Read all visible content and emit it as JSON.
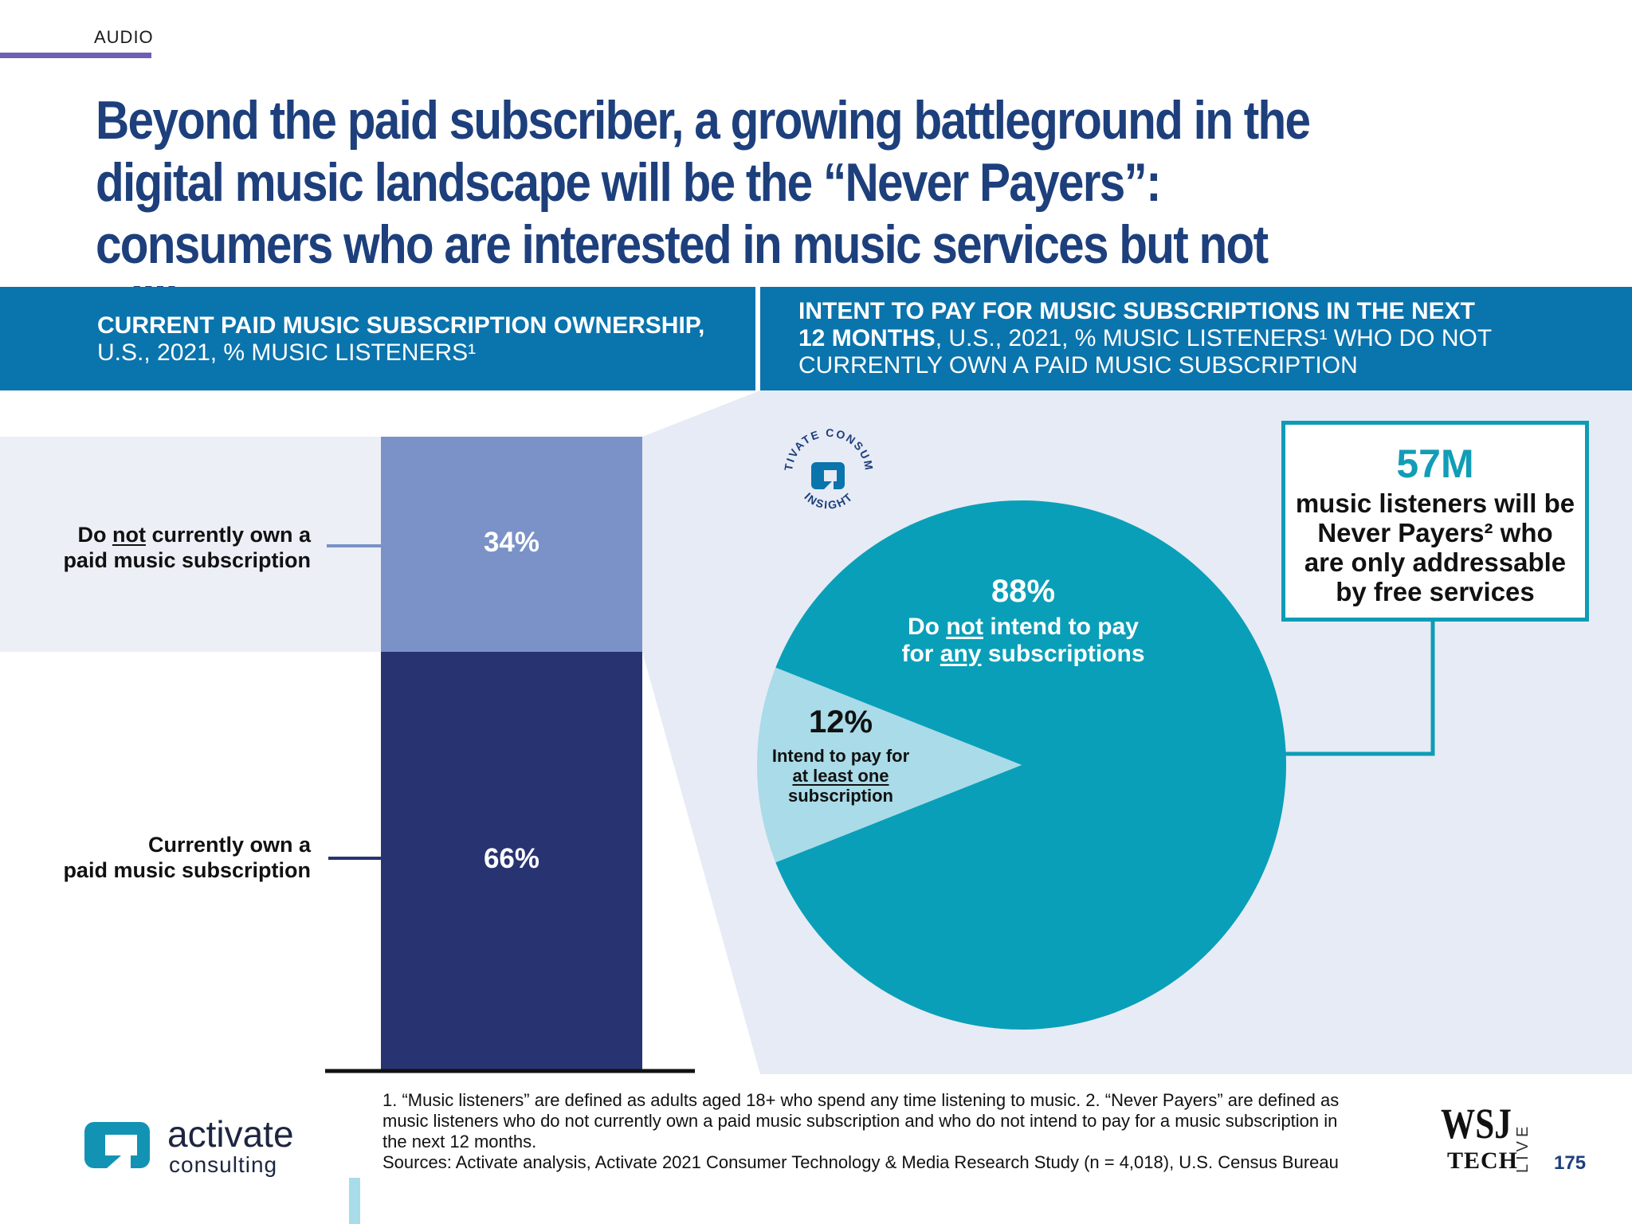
{
  "section": {
    "tag": "AUDIO"
  },
  "headline": "Beyond the paid subscriber, a growing battleground in the digital music landscape will be the “Never Payers”: consumers who are interested in music services but not willing to pay",
  "left_panel": {
    "title_bold": "CURRENT PAID MUSIC SUBSCRIPTION OWNERSHIP,",
    "title_rest": "U.S., 2021, % MUSIC LISTENERS¹"
  },
  "right_panel": {
    "title_line1": "INTENT TO PAY FOR MUSIC SUBSCRIPTIONS IN THE NEXT",
    "title_line2_bold": "12 MONTHS",
    "title_line2_rest": ", U.S., 2021, % MUSIC LISTENERS¹ WHO DO NOT",
    "title_line3": "CURRENTLY OWN A PAID MUSIC SUBSCRIPTION"
  },
  "badge": {
    "text_top": "ACTIVATE CONSUMER",
    "text_bottom": "INSIGHT"
  },
  "callout": {
    "number": "57M",
    "line1": "music listeners will be",
    "line2": "Never Payers² who",
    "line3": "are only addressable",
    "line4": "by free services"
  },
  "chart_data": [
    {
      "type": "bar",
      "stacked": true,
      "categories": [
        "Do not currently own a paid music subscription",
        "Currently own a paid music subscription"
      ],
      "values": [
        34,
        66
      ],
      "value_labels": [
        "34%",
        "66%"
      ],
      "label_parts": {
        "top_1a": "Do ",
        "top_1u": "not",
        "top_1b": " currently own a",
        "top_2": "paid music subscription",
        "bottom_1": "Currently own a",
        "bottom_2": "paid music subscription"
      },
      "colors": [
        "#7a92c7",
        "#283371"
      ]
    },
    {
      "type": "pie",
      "values": [
        88,
        12
      ],
      "value_labels": [
        "88%",
        "12%"
      ],
      "label_parts": {
        "big_1a": "Do ",
        "big_1u": "not",
        "big_1b": " intend to pay",
        "big_2a": "for ",
        "big_2u": "any",
        "big_2b": " subscriptions",
        "small_1": "Intend to pay for",
        "small_2u": "at least one",
        "small_3": "subscription"
      },
      "colors": [
        "#0a9fb8",
        "#a9dbe8"
      ]
    }
  ],
  "footnote": {
    "line1": "1. “Music listeners” are defined as adults aged 18+ who spend any time listening to music.  2. “Never Payers” are defined as",
    "line2": "music listeners who do not currently own a paid music subscription and who do not intend to pay for a music subscription in",
    "line3": "the next 12 months.",
    "sources": "Sources: Activate analysis, Activate 2021 Consumer Technology & Media Research Study (n = 4,018), U.S. Census Bureau"
  },
  "branding": {
    "logo_word": "activate",
    "logo_sub": "consulting",
    "wsj": "WSJ",
    "wsj_tech": "TECH",
    "wsj_live": "LIVE",
    "page_number": "175"
  }
}
